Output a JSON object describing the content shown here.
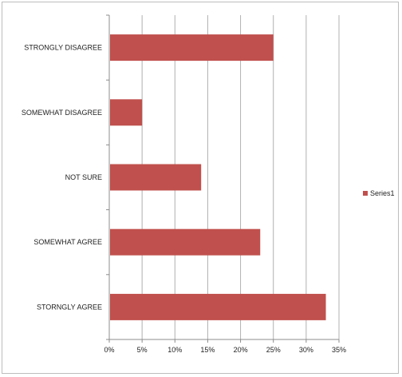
{
  "chart_data": {
    "type": "bar",
    "orientation": "horizontal",
    "categories": [
      "STRONGLY DISAGREE",
      "SOMEWHAT DISAGREE",
      "NOT SURE",
      "SOMEWHAT AGREE",
      "STORNGLY AGREE"
    ],
    "series": [
      {
        "name": "Series1",
        "values": [
          25,
          5,
          14,
          23,
          33
        ],
        "color": "#c0504d"
      }
    ],
    "x_ticks": [
      "0%",
      "5%",
      "10%",
      "15%",
      "20%",
      "25%",
      "30%",
      "35%"
    ],
    "xlim": [
      0,
      35
    ],
    "grid": true,
    "legend_position": "right",
    "title": "",
    "xlabel": "",
    "ylabel": ""
  }
}
